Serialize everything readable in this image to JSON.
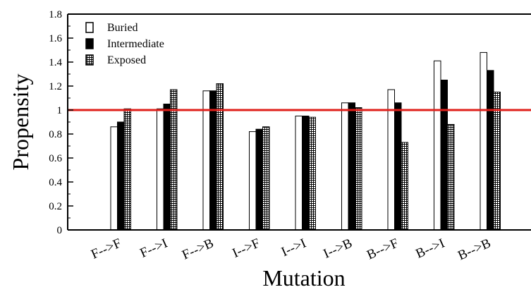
{
  "chart_data": {
    "type": "bar",
    "xlabel": "Mutation",
    "ylabel": "Propensity",
    "categories": [
      "F-->F",
      "F-->I",
      "F-->B",
      "I-->F",
      "I-->I",
      "I-->B",
      "B-->F",
      "B-->I",
      "B-->B"
    ],
    "ylim": [
      0,
      1.8
    ],
    "yticks": [
      "0",
      "0.2",
      "0.4",
      "0.6",
      "0.8",
      "1",
      "1.2",
      "1.4",
      "1.6",
      "1.8"
    ],
    "series": [
      {
        "name": "Buried",
        "style": "open",
        "values": [
          0.86,
          1.01,
          1.16,
          0.82,
          0.95,
          1.06,
          1.17,
          1.41,
          1.48
        ]
      },
      {
        "name": "Intermediate",
        "style": "filled",
        "values": [
          0.9,
          1.05,
          1.16,
          0.84,
          0.95,
          1.06,
          1.06,
          1.25,
          1.33
        ]
      },
      {
        "name": "Exposed",
        "style": "hatched",
        "values": [
          1.01,
          1.17,
          1.22,
          0.86,
          0.94,
          1.02,
          0.73,
          0.88,
          1.15
        ]
      }
    ],
    "reference_line": {
      "y": 1,
      "color": "#e0201b"
    },
    "legend_position": "top-left",
    "grid": false
  }
}
